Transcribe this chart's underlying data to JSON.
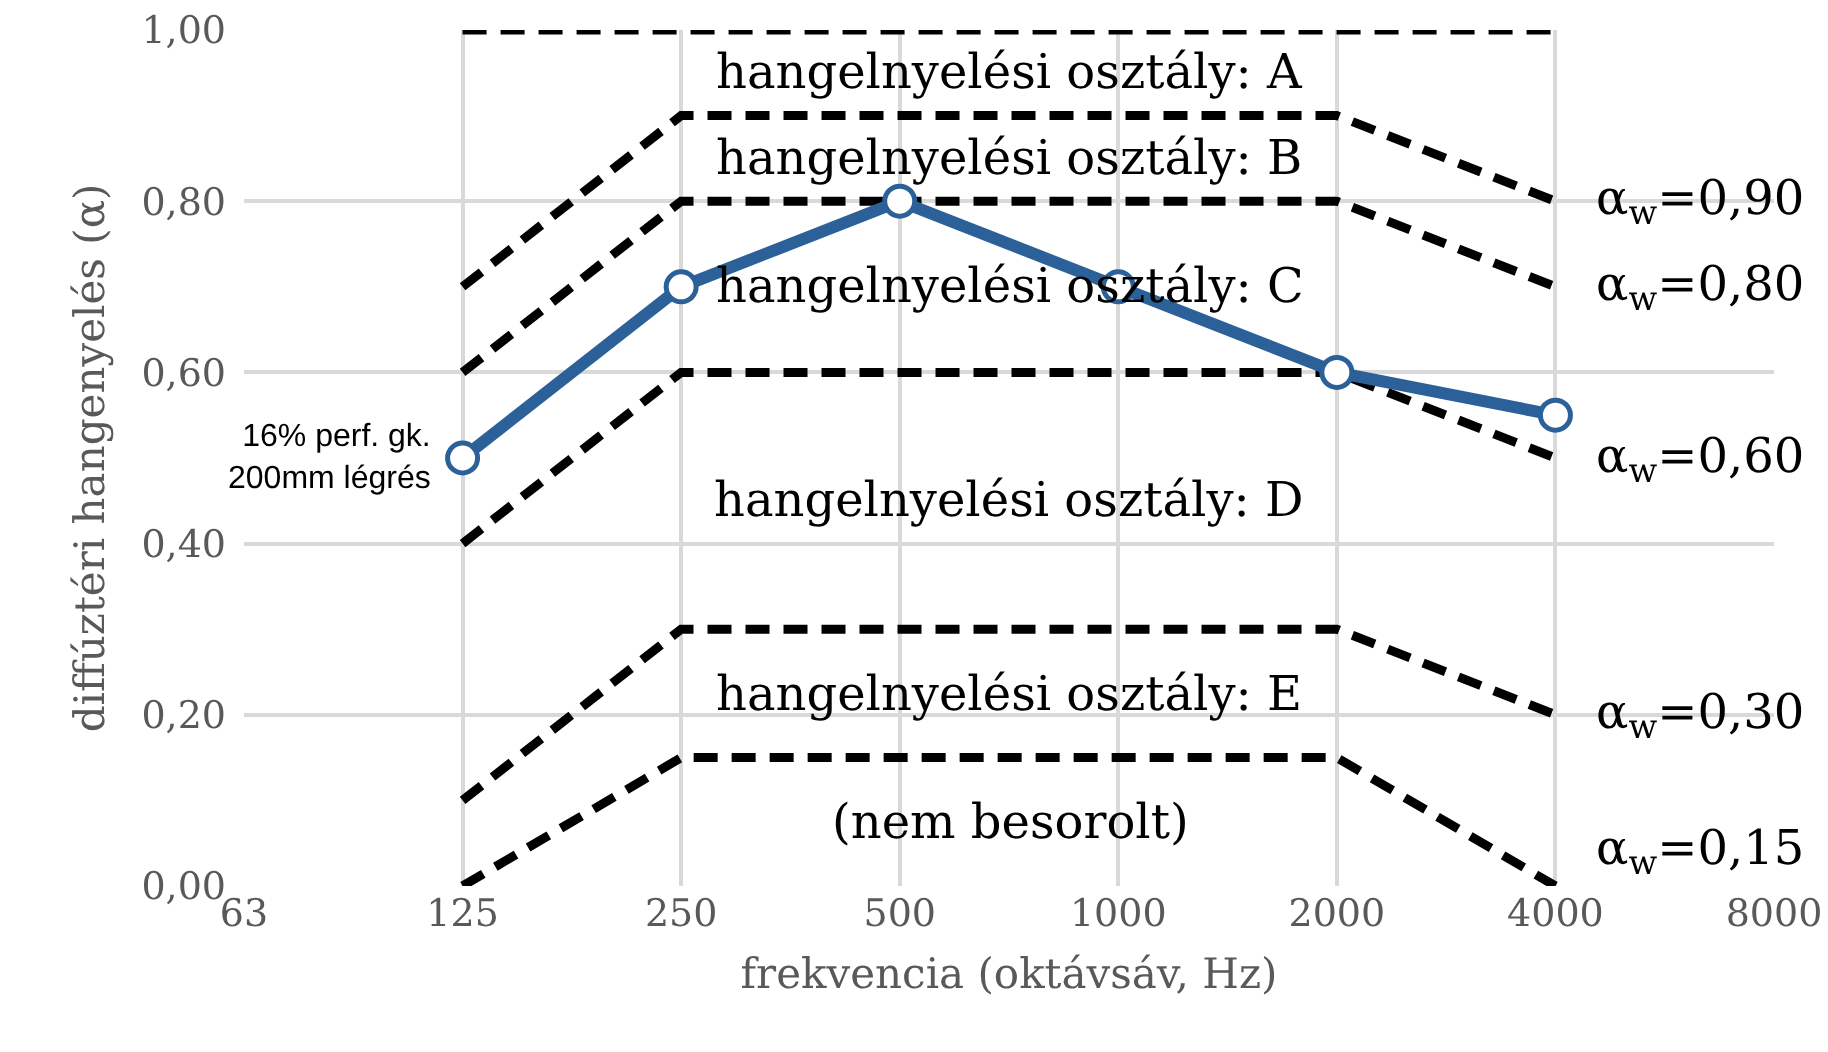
{
  "chart_data": {
    "type": "line",
    "categories": [
      "63",
      "125",
      "250",
      "500",
      "1000",
      "2000",
      "4000",
      "8000"
    ],
    "xlabel": "frekvencia (oktávsáv, Hz)",
    "ylabel": "diffúztéri hangenyelés (α)",
    "ylim": [
      0,
      1
    ],
    "yticks": [
      {
        "value": 0,
        "label": "0,00"
      },
      {
        "value": 0.2,
        "label": "0,20"
      },
      {
        "value": 0.4,
        "label": "0,40"
      },
      {
        "value": 0.6,
        "label": "0,60"
      },
      {
        "value": 0.8,
        "label": "0,80"
      },
      {
        "value": 1,
        "label": "1,00"
      }
    ],
    "grid": true,
    "legend": false,
    "series": [
      {
        "color": "#000000",
        "line_style": "dashed",
        "values": [
          null,
          1.0,
          1.0,
          1.0,
          1.0,
          1.0,
          1.0,
          null
        ]
      },
      {
        "name": "α$_{w}$=0,90",
        "color": "#000000",
        "line_style": "dashed",
        "values": [
          null,
          0.7,
          0.9,
          0.9,
          0.9,
          0.9,
          0.8,
          null
        ]
      },
      {
        "name": "α$_{w}$=0,80",
        "color": "#000000",
        "line_style": "dashed",
        "values": [
          null,
          0.6,
          0.8,
          0.8,
          0.8,
          0.8,
          0.7,
          null
        ]
      },
      {
        "name": "α$_{w}$=0,60",
        "color": "#000000",
        "line_style": "dashed",
        "values": [
          null,
          0.4,
          0.6,
          0.6,
          0.6,
          0.6,
          0.5,
          null
        ]
      },
      {
        "name": "α$_{w}$=0,30",
        "color": "#000000",
        "line_style": "dashed",
        "values": [
          null,
          0.1,
          0.3,
          0.3,
          0.3,
          0.3,
          0.2,
          null
        ]
      },
      {
        "name": "α$_{w}$=0,15",
        "color": "#000000",
        "line_style": "dashed",
        "values": [
          null,
          0.0,
          0.15,
          0.15,
          0.15,
          0.15,
          0.0,
          null
        ]
      },
      {
        "name": "16% perf. gk.\n200mm légrés",
        "color": "#2b6198",
        "line_style": "solid",
        "marker": "circle",
        "values": [
          null,
          0.5,
          0.7,
          0.8,
          0.7,
          0.6,
          0.55,
          null
        ]
      }
    ],
    "annotations": [
      "hangelnyelési osztály: A",
      "hangelnyelési osztály: B",
      "hangelnyelési osztály: C",
      "hangelnyelési osztály: D",
      "hangelnyelési osztály: E",
      "(nem besorolt)"
    ]
  }
}
